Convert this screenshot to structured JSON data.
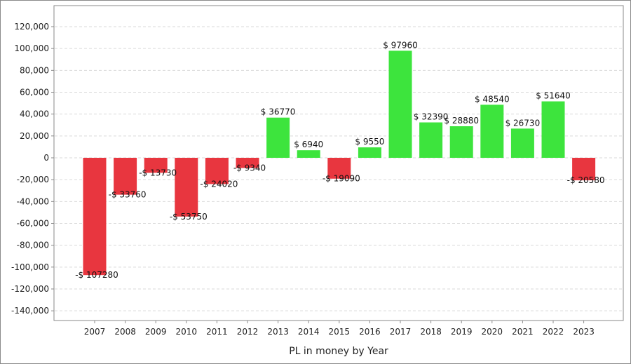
{
  "chart_data": {
    "type": "bar",
    "title": "",
    "xlabel": "PL in money by Year",
    "ylabel": "",
    "categories": [
      "2007",
      "2008",
      "2009",
      "2010",
      "2011",
      "2012",
      "2013",
      "2014",
      "2015",
      "2016",
      "2017",
      "2018",
      "2019",
      "2020",
      "2021",
      "2022",
      "2023"
    ],
    "values": [
      -107280,
      -33760,
      -13730,
      -53750,
      -24020,
      -9340,
      36770,
      6940,
      -19090,
      9550,
      97960,
      32390,
      28880,
      48540,
      26730,
      51640,
      -20580
    ],
    "data_labels": [
      "-$ 107280",
      "-$ 33760",
      "-$ 13730",
      "-$ 53750",
      "-$ 24020",
      "-$ 9340",
      "$ 36770",
      "$ 6940",
      "-$ 19090",
      "$ 9550",
      "$ 97960",
      "$ 32390",
      "$ 28880",
      "$ 48540",
      "$ 26730",
      "$ 51640",
      "-$ 20580"
    ],
    "ylim": [
      -150000,
      130000
    ],
    "yticks": [
      120000,
      100000,
      80000,
      60000,
      40000,
      20000,
      0,
      -20000,
      -40000,
      -60000,
      -80000,
      -100000,
      -120000,
      -140000
    ],
    "ytick_labels": [
      "120,000",
      "100,000",
      "80,000",
      "60,000",
      "40,000",
      "20,000",
      "0",
      "-20,000",
      "-40,000",
      "-60,000",
      "-80,000",
      "-100,000",
      "-120,000",
      "-140,000"
    ],
    "grid": true,
    "legend": "none",
    "colors": {
      "positive": "#3de43d",
      "negative": "#e8363f",
      "grid": "#d9d9d9",
      "axis": "#8a8a8a"
    }
  }
}
